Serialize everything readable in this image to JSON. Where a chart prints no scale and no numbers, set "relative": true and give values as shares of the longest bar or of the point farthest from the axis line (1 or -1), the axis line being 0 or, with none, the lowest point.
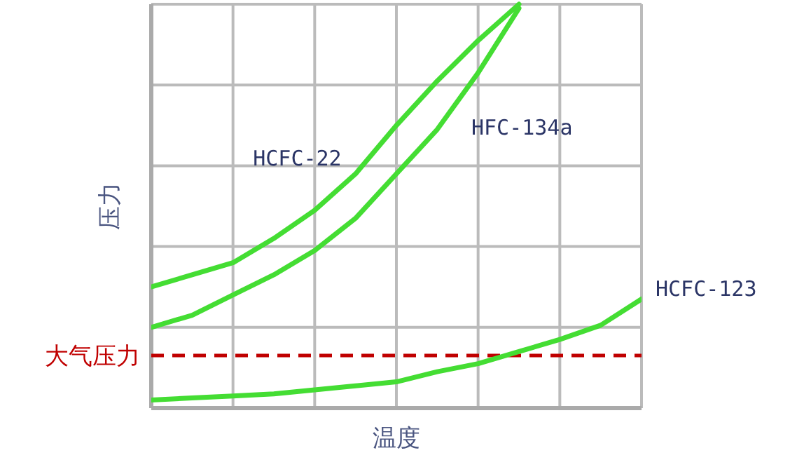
{
  "chart_data": {
    "type": "line",
    "relative": true,
    "xlabel": "温度",
    "ylabel": "压力",
    "legend": false,
    "grid": true,
    "marker": "none",
    "line_style": "solid",
    "categories": [
      null,
      null,
      null,
      null,
      null,
      null,
      null,
      null,
      null,
      null,
      null,
      null,
      null
    ],
    "series": [
      {
        "name": "HCFC-22",
        "color": "#44dd33",
        "values": [
          0.3,
          0.33,
          0.36,
          0.42,
          0.49,
          0.58,
          0.7,
          0.81,
          0.91,
          1.0,
          null,
          null,
          null
        ]
      },
      {
        "name": "HFC-134a",
        "color": "#44dd33",
        "values": [
          0.2,
          0.23,
          0.28,
          0.33,
          0.39,
          0.47,
          0.58,
          0.69,
          0.83,
          0.99,
          null,
          null,
          null
        ]
      },
      {
        "name": "HCFC-123",
        "color": "#44dd33",
        "values": [
          0.02,
          0.025,
          0.03,
          0.035,
          0.045,
          0.055,
          0.065,
          0.09,
          0.11,
          0.14,
          0.17,
          0.205,
          0.27
        ]
      }
    ],
    "ref_lines": [
      {
        "axis": "y",
        "value": 0.13,
        "label": "大气压力",
        "color": "#c00000",
        "line_style": "dashed"
      }
    ]
  }
}
